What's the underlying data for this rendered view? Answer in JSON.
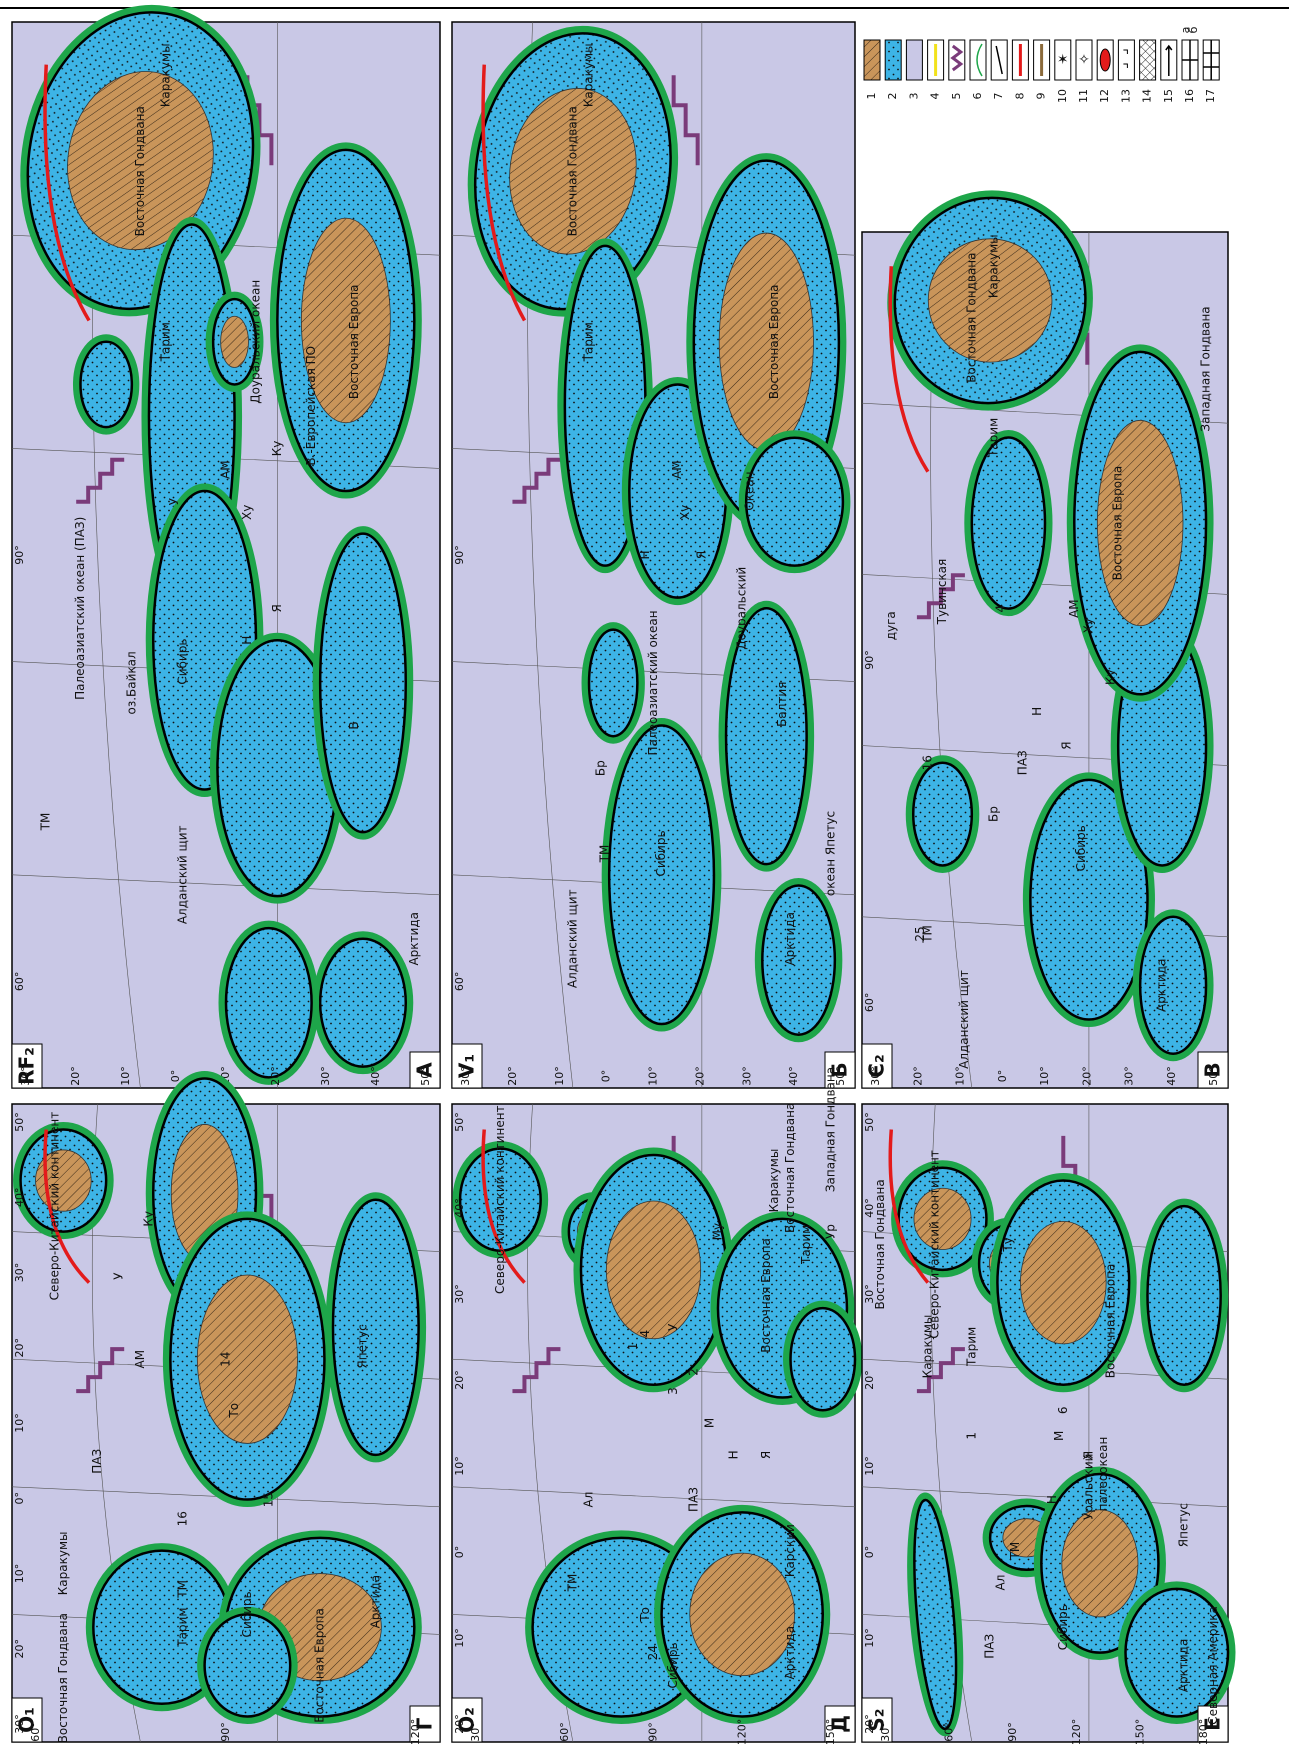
{
  "panels": [
    {
      "age": "RF₂",
      "letter": "А",
      "lat_labels": [
        "30°",
        "20°",
        "10°",
        "0°",
        "10°",
        "20°",
        "30°",
        "40°",
        "50°"
      ],
      "lon_labels": [
        "90°",
        "60°"
      ],
      "labels": [
        "Восточная Гондвана",
        "Тарим",
        "Каракумы",
        "Палеоазиатский океан (ПАЗ)",
        "оз.Байкал",
        "Сибирь",
        "Алданский щит",
        "ТМ",
        "АМ",
        "У",
        "Доуральский океан",
        "В.-Европейская ПО",
        "Восточная Европа",
        "Арктида",
        "Н",
        "Я",
        "Ху",
        "Ку",
        "В"
      ]
    },
    {
      "age": "V₁",
      "letter": "Б",
      "lat_labels": [
        "30°",
        "20°",
        "10°",
        "0°",
        "10°",
        "20°",
        "30°",
        "40°",
        "50°"
      ],
      "lon_labels": [
        "90°",
        "60°"
      ],
      "labels": [
        "Восточная Гондвана",
        "Тарим",
        "Каракумы",
        "Палеоазиатский океан",
        "ТМ",
        "АМ",
        "Бр",
        "Сибирь",
        "Алданский щит",
        "Арктида",
        "Доуральский",
        "Океан",
        "Восточная Европа",
        "Балтия",
        "океан Япетус",
        "Н",
        "Я",
        "Ху"
      ]
    },
    {
      "age": "Є₂",
      "letter": "В",
      "lat_labels": [
        "30°",
        "20°",
        "10°",
        "0°",
        "10°",
        "20°",
        "30°",
        "40°",
        "50°"
      ],
      "lon_labels": [
        "90°",
        "60°"
      ],
      "labels": [
        "Восточная Гондвана",
        "Тарим",
        "Каракумы",
        "Тувинская",
        "дуга",
        "ТМ",
        "ПАЗ",
        "Бр",
        "Сибирь",
        "Алданский щит",
        "Арктида",
        "АМ",
        "Восточная Европа",
        "Западная Гондвана",
        "Ку",
        "Ху",
        "Н",
        "Я",
        "4",
        "16",
        "25"
      ]
    },
    {
      "age": "O₁",
      "letter": "Г",
      "lat_labels": [
        "50°",
        "40°",
        "30°",
        "20°",
        "10°",
        "0°",
        "10°",
        "20°",
        "30°"
      ],
      "lon_labels": [
        "60°",
        "90°",
        "120°"
      ],
      "labels": [
        "Северо-Китайский континент",
        "ПАЗ",
        "ТМ",
        "АМ",
        "У",
        "То",
        "16",
        "15",
        "14",
        "Сибирь",
        "Арктида",
        "Восточная Гондвана",
        "Тарим",
        "Каракумы",
        "Восточная Европа",
        "Япетус",
        "Ку"
      ]
    },
    {
      "age": "O₂",
      "letter": "Д",
      "lat_labels": [
        "50°",
        "40°",
        "30°",
        "20°",
        "10°",
        "0°",
        "10°",
        "20°"
      ],
      "lon_labels": [
        "30°",
        "60°",
        "90°",
        "120°",
        "150°"
      ],
      "labels": [
        "Северо-Китайский континент",
        "ТМ",
        "Ал",
        "ПАЗ",
        "То",
        "24",
        "1",
        "2",
        "3",
        "4",
        "Сибирь",
        "Арктида",
        "Карский",
        "Восточная Гондвана",
        "Тарим",
        "Каракумы",
        "Западная Гондвана",
        "Восточная Европа",
        "Му",
        "Ур",
        "У",
        "Н",
        "М",
        "Я"
      ]
    },
    {
      "age": "S₂",
      "letter": "Е",
      "lat_labels": [
        "50°",
        "40°",
        "30°",
        "20°",
        "10°",
        "0°",
        "10°",
        "20°"
      ],
      "lon_labels": [
        "30°",
        "60°",
        "90°",
        "120°",
        "150°",
        "180°"
      ],
      "labels": [
        "Северо-Китайский континент",
        "ПАЗ",
        "ТМ",
        "Ал",
        "Ту",
        "1",
        "6",
        "Сибирь",
        "Арктида",
        "Северная Америка",
        "Япетус",
        "Уральский",
        "палеоокеан",
        "Восточная Европа",
        "Тарим",
        "Каракумы",
        "Восточная Гондвана",
        "Н",
        "М",
        "Я"
      ]
    }
  ],
  "legend": {
    "items": [
      "1",
      "2",
      "3",
      "4",
      "5",
      "6",
      "7",
      "8",
      "9",
      "10",
      "11",
      "12",
      "13",
      "14",
      "15",
      "16",
      "17"
    ],
    "sublabels": [
      "а",
      "б"
    ]
  }
}
